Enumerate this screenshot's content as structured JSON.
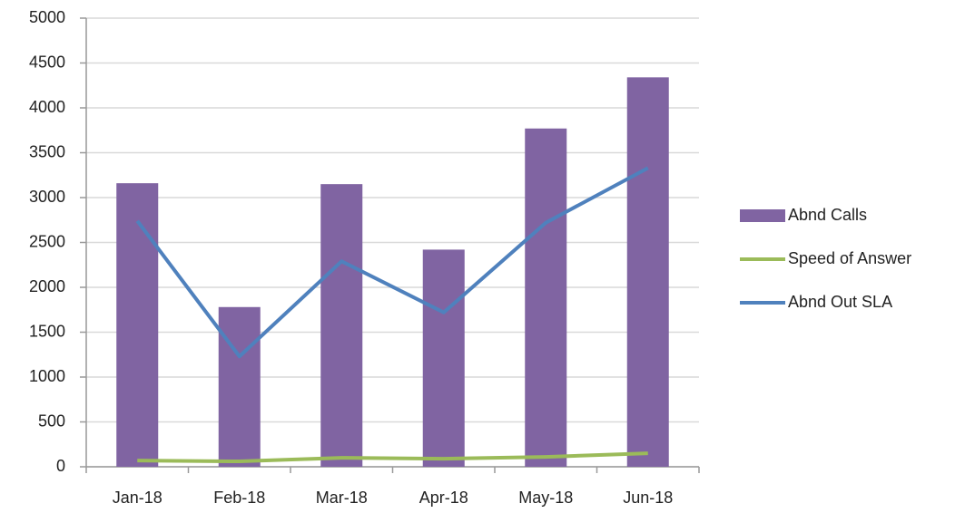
{
  "chart_data": {
    "type": "bar",
    "categories": [
      "Jan-18",
      "Feb-18",
      "Mar-18",
      "Apr-18",
      "May-18",
      "Jun-18"
    ],
    "series": [
      {
        "name": "Abnd Calls",
        "type": "bar",
        "color": "#8064a2",
        "values": [
          3160,
          1780,
          3150,
          2420,
          3770,
          4340
        ]
      },
      {
        "name": "Speed of Answer",
        "type": "line",
        "color": "#9bbb59",
        "values": [
          70,
          60,
          100,
          90,
          110,
          150
        ]
      },
      {
        "name": "Abnd Out SLA",
        "type": "line",
        "color": "#4f81bd",
        "values": [
          2740,
          1230,
          2290,
          1720,
          2720,
          3330
        ]
      }
    ],
    "ylim": [
      0,
      5000
    ],
    "yticks": [
      0,
      500,
      1000,
      1500,
      2000,
      2500,
      3000,
      3500,
      4000,
      4500,
      5000
    ],
    "grid": true,
    "legend": "right"
  }
}
